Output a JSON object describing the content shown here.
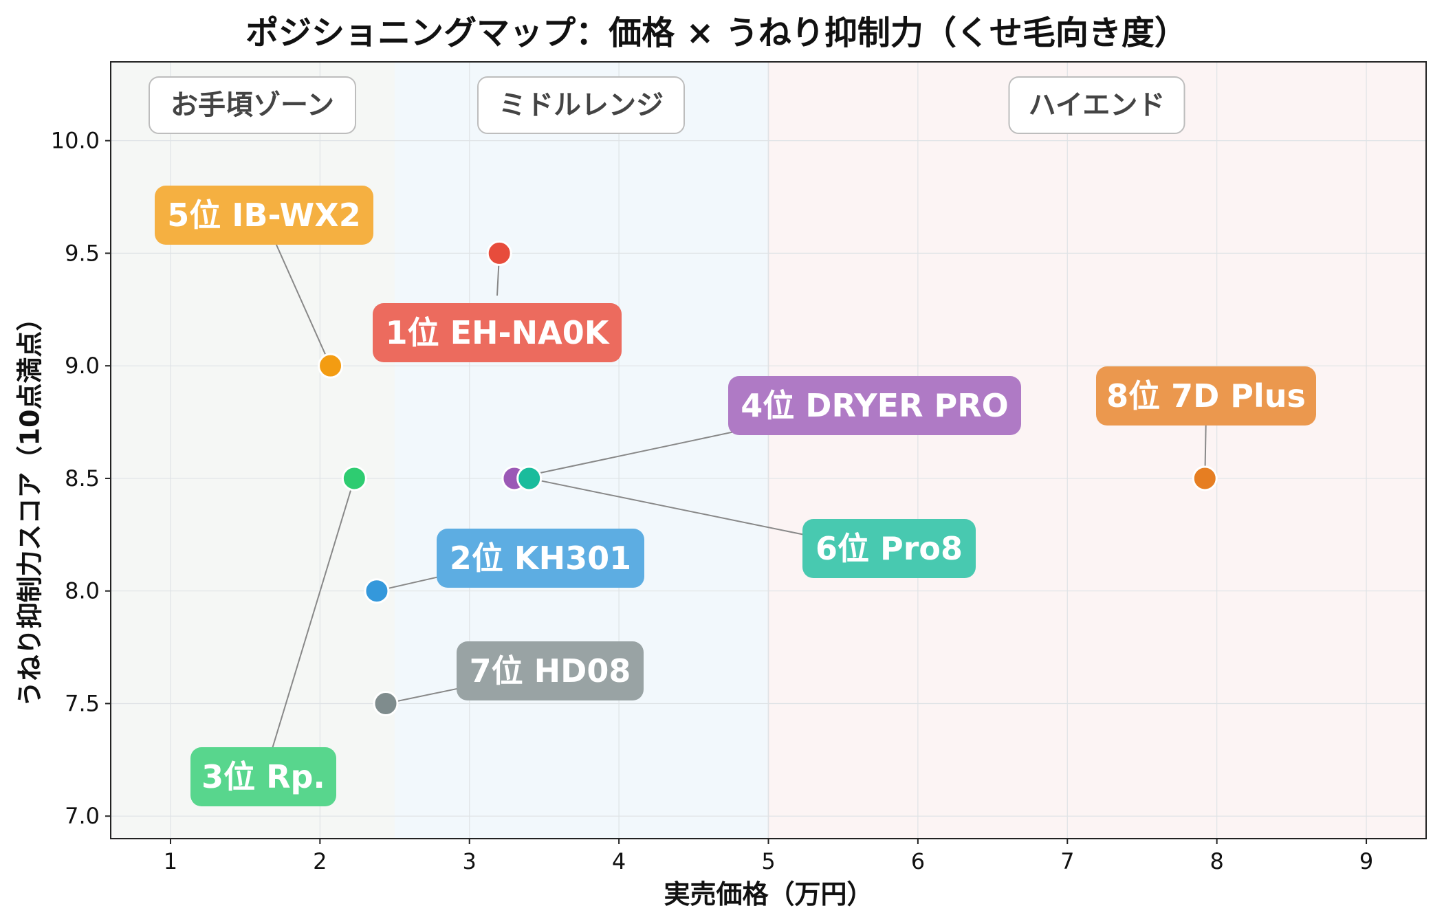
{
  "chart_data": {
    "type": "scatter",
    "title": "ポジショニングマップ：価格 × うねり抑制力（くせ毛向き度）",
    "xlabel": "実売価格（万円）",
    "ylabel": "うねり抑制力スコア（10点満点）",
    "xlim": [
      0.6,
      9.4
    ],
    "ylim": [
      6.9,
      10.35
    ],
    "x_ticks": [
      1,
      2,
      3,
      4,
      5,
      6,
      7,
      8,
      9
    ],
    "x_tick_labels": [
      "1",
      "2",
      "3",
      "4",
      "5",
      "6",
      "7",
      "8",
      "9"
    ],
    "y_ticks": [
      7.0,
      7.5,
      8.0,
      8.5,
      9.0,
      9.5,
      10.0
    ],
    "y_tick_labels": [
      "7.0",
      "7.5",
      "8.0",
      "8.5",
      "9.0",
      "9.5",
      "10.0"
    ],
    "grid": true,
    "zones": [
      {
        "label": "お手頃ゾーン",
        "x_from": 0.6,
        "x_to": 2.5,
        "color": "#f5f7f5"
      },
      {
        "label": "ミドルレンジ",
        "x_from": 2.5,
        "x_to": 5.0,
        "color": "#f2f8fc"
      },
      {
        "label": "ハイエンド",
        "x_from": 5.0,
        "x_to": 9.4,
        "color": "#fcf4f4"
      }
    ],
    "points": [
      {
        "label": "1位 EH-NA0K",
        "x": 3.2,
        "y": 9.5,
        "color": "#e74c3c",
        "label_color": "#ec6b5e"
      },
      {
        "label": "2位 KH301",
        "x": 2.38,
        "y": 8.0,
        "color": "#3498db",
        "label_color": "#5dade2"
      },
      {
        "label": "3位 Rp.",
        "x": 2.23,
        "y": 8.5,
        "color": "#2ecc71",
        "label_color": "#58d68d"
      },
      {
        "label": "4位 DRYER PRO",
        "x": 3.3,
        "y": 8.5,
        "color": "#9b59b6",
        "label_color": "#af7ac5"
      },
      {
        "label": "5位 IB-WX2",
        "x": 2.07,
        "y": 9.0,
        "color": "#f39c12",
        "label_color": "#f5b041"
      },
      {
        "label": "6位 Pro8",
        "x": 3.4,
        "y": 8.5,
        "color": "#1abc9c",
        "label_color": "#48c9b0"
      },
      {
        "label": "7位 HD08",
        "x": 2.44,
        "y": 7.5,
        "color": "#7f8c8d",
        "label_color": "#99a3a4"
      },
      {
        "label": "8位 7D Plus",
        "x": 7.92,
        "y": 8.5,
        "color": "#e67e22",
        "label_color": "#eb984e"
      }
    ]
  }
}
